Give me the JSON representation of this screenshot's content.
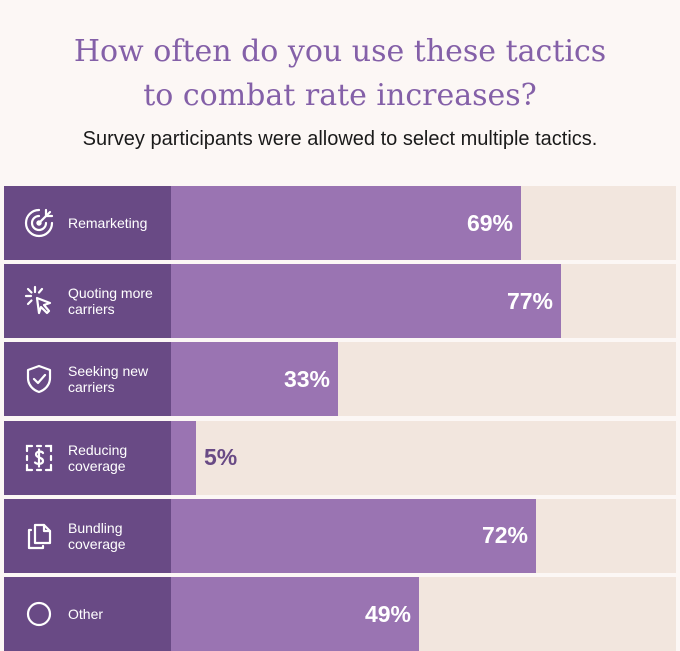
{
  "title_line1": "How often do you use these tactics",
  "title_line2": "to combat rate increases?",
  "subtitle": "Survey participants were allowed to select multiple tactics.",
  "colors": {
    "label_bg": "#694a85",
    "bar": "#9a74b2",
    "track": "#f2e6de",
    "title": "#8460a8",
    "outside_value": "#694a85"
  },
  "chart_data": {
    "type": "bar",
    "orientation": "horizontal",
    "title": "How often do you use these tactics to combat rate increases?",
    "subtitle": "Survey participants were allowed to select multiple tactics.",
    "xlim": [
      0,
      100
    ],
    "categories": [
      "Remarketing",
      "Quoting more carriers",
      "Seeking new carriers",
      "Reducing coverage",
      "Bundling coverage",
      "Other"
    ],
    "values": [
      69,
      77,
      33,
      5,
      72,
      49
    ],
    "value_labels": [
      "69%",
      "77%",
      "33%",
      "5%",
      "72%",
      "49%"
    ],
    "icons": [
      "target-icon",
      "cursor-click-icon",
      "shield-check-icon",
      "dollar-dashed-icon",
      "documents-icon",
      "circle-icon"
    ],
    "labels": [
      [
        "Remarketing"
      ],
      [
        "Quoting more",
        "carriers"
      ],
      [
        "Seeking new",
        "carriers"
      ],
      [
        "Reducing",
        "coverage"
      ],
      [
        "Bundling",
        "coverage"
      ],
      [
        "Other"
      ]
    ]
  }
}
